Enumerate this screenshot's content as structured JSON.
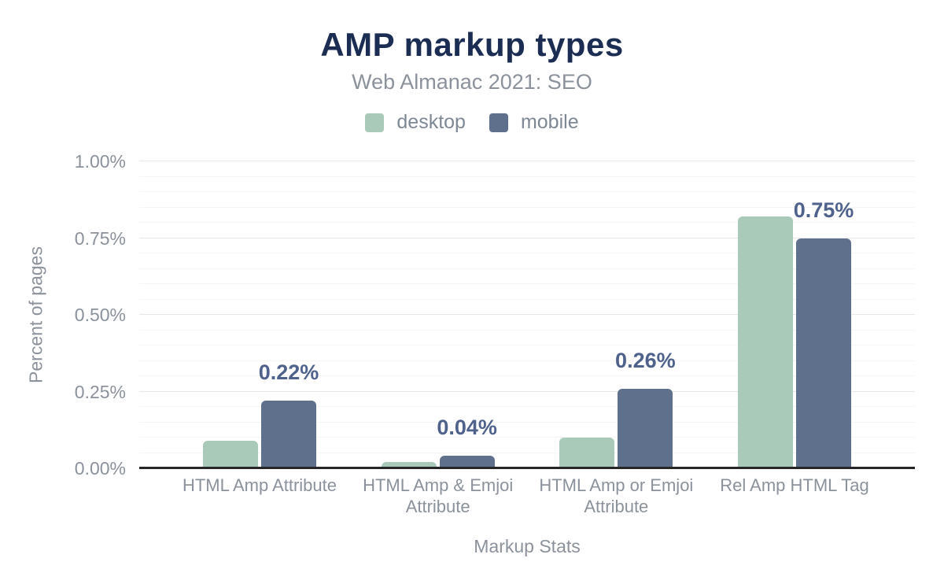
{
  "chart_data": {
    "type": "bar",
    "title": "AMP markup types",
    "subtitle": "Web Almanac 2021: SEO",
    "xlabel": "Markup Stats",
    "ylabel": "Percent of pages",
    "categories": [
      "HTML Amp Attribute",
      "HTML Amp & Emjoi Attribute",
      "HTML Amp or Emjoi Attribute",
      "Rel Amp HTML Tag"
    ],
    "series": [
      {
        "name": "desktop",
        "color": "#a9c9b9",
        "values": [
          0.09,
          0.02,
          0.1,
          0.82
        ],
        "labels": [
          "",
          "",
          "",
          ""
        ]
      },
      {
        "name": "mobile",
        "color": "#5f708d",
        "values": [
          0.22,
          0.04,
          0.26,
          0.75
        ],
        "labels": [
          "0.22%",
          "0.04%",
          "0.26%",
          "0.75%"
        ]
      }
    ],
    "ylim": [
      0,
      1.0
    ],
    "yticks": [
      {
        "value": 0.0,
        "label": "0.00%"
      },
      {
        "value": 0.25,
        "label": "0.25%"
      },
      {
        "value": 0.5,
        "label": "0.50%"
      },
      {
        "value": 0.75,
        "label": "0.75%"
      },
      {
        "value": 1.0,
        "label": "1.00%"
      }
    ],
    "minor_grid_step": 0.05,
    "major_grid_step": 0.25,
    "grid": true,
    "legend_position": "top",
    "colors": {
      "title": "#1b2d53",
      "subtitle": "#8b929b",
      "axis_text": "#8b929b",
      "data_label": "#4e628c",
      "baseline": "#262626",
      "major_grid": "#e7e7e7",
      "minor_grid": "#f6f6f6"
    }
  }
}
